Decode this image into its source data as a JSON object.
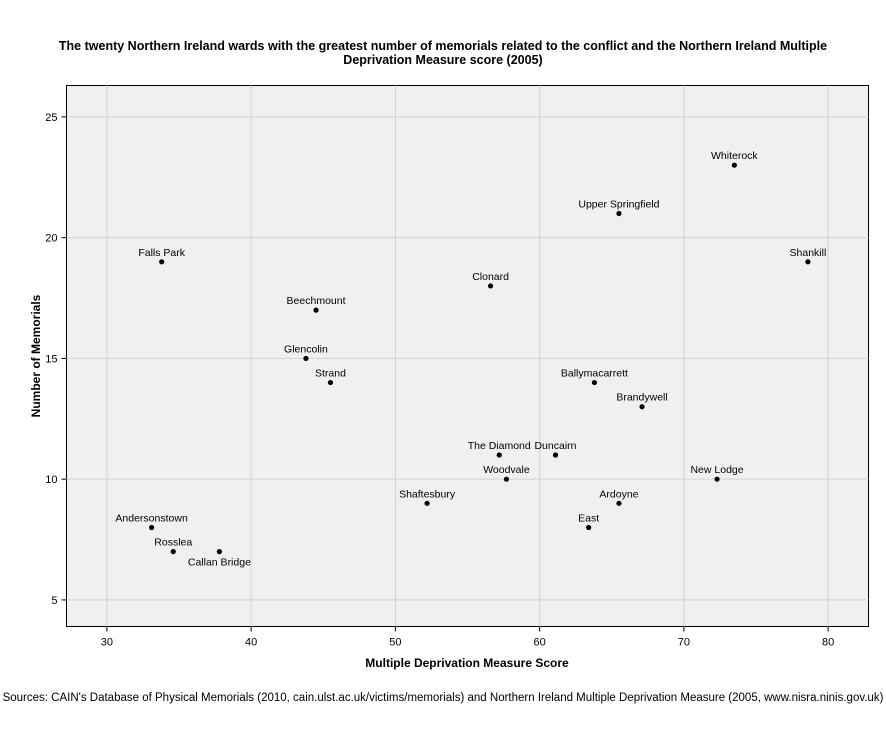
{
  "title_line1": "The twenty Northern Ireland wards with the greatest number of memorials related to the conflict and the Northern Ireland Multiple",
  "title_line2": "Deprivation Measure score (2005)",
  "source": "Sources: CAIN's Database of Physical Memorials (2010, cain.ulst.ac.uk/victims/memorials) and Northern Ireland Multiple Deprivation Measure (2005, www.nisra.ninis.gov.uk)",
  "chart_data": {
    "type": "scatter",
    "title": "The twenty Northern Ireland wards with the greatest number of memorials related to the conflict and the Northern Ireland Multiple Deprivation Measure score (2005)",
    "xlabel": "Multiple Deprivation Measure Score",
    "ylabel": "Number of Memorials",
    "xlim": [
      27.2,
      82.8
    ],
    "ylim": [
      3.9,
      26.3
    ],
    "xticks": [
      30,
      40,
      50,
      60,
      70,
      80
    ],
    "yticks": [
      5,
      10,
      15,
      20,
      25
    ],
    "grid": true,
    "background": "#f0f0f0",
    "points": [
      {
        "label": "Whiterock",
        "x": 73.5,
        "y": 23
      },
      {
        "label": "Upper Springfield",
        "x": 65.5,
        "y": 21
      },
      {
        "label": "Falls Park",
        "x": 33.8,
        "y": 19
      },
      {
        "label": "Shankill",
        "x": 78.6,
        "y": 19
      },
      {
        "label": "Clonard",
        "x": 56.6,
        "y": 18
      },
      {
        "label": "Beechmount",
        "x": 44.5,
        "y": 17
      },
      {
        "label": "Glencolin",
        "x": 43.8,
        "y": 15
      },
      {
        "label": "Strand",
        "x": 45.5,
        "y": 14
      },
      {
        "label": "Ballymacarrett",
        "x": 63.8,
        "y": 14
      },
      {
        "label": "Brandywell",
        "x": 67.1,
        "y": 13
      },
      {
        "label": "The Diamond",
        "x": 57.2,
        "y": 11
      },
      {
        "label": "Duncairn",
        "x": 61.1,
        "y": 11
      },
      {
        "label": "Woodvale",
        "x": 57.7,
        "y": 10
      },
      {
        "label": "New Lodge",
        "x": 72.3,
        "y": 10
      },
      {
        "label": "Shaftesbury",
        "x": 52.2,
        "y": 9
      },
      {
        "label": "Ardoyne",
        "x": 65.5,
        "y": 9
      },
      {
        "label": "East",
        "x": 63.4,
        "y": 8
      },
      {
        "label": "Andersonstown",
        "x": 33.1,
        "y": 8
      },
      {
        "label": "Rosslea",
        "x": 34.6,
        "y": 7
      },
      {
        "label": "Callan Bridge",
        "x": 37.8,
        "y": 7
      }
    ]
  }
}
